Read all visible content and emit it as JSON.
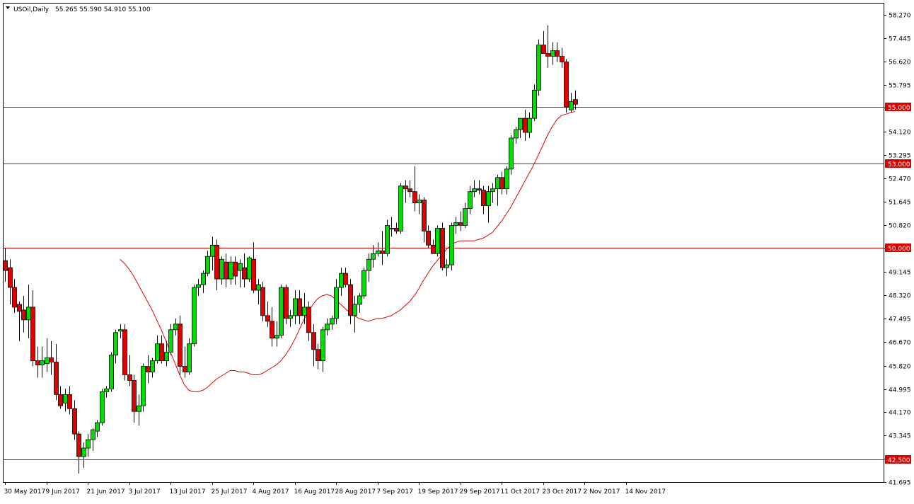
{
  "header": {
    "symbol": "USOil,Daily",
    "ohlc": "55.265 55.590 54.910 55.100"
  },
  "colors": {
    "bull": "#00dd00",
    "bear": "#dd0000",
    "wick": "#000000",
    "ma": "#e00000",
    "level_line": "#dd0000",
    "label_bg": "#dd0000",
    "label_text": "#ffffff",
    "frame": "#000000",
    "background": "#ffffff"
  },
  "chart_data": {
    "type": "candlestick",
    "title": "USOil,Daily",
    "ylim": [
      41.695,
      58.35
    ],
    "grid": false,
    "y_ticks": [
      "58.270",
      "57.445",
      "56.620",
      "55.795",
      "54.970",
      "54.120",
      "53.295",
      "52.470",
      "51.645",
      "50.820",
      "49.970",
      "49.145",
      "48.320",
      "47.495",
      "46.670",
      "45.820",
      "44.995",
      "44.170",
      "43.345",
      "42.520",
      "41.695"
    ],
    "x_labels": [
      "30 May 2017",
      "9 Jun 2017",
      "21 Jun 2017",
      "3 Jul 2017",
      "13 Jul 2017",
      "25 Jul 2017",
      "4 Aug 2017",
      "16 Aug 2017",
      "28 Aug 2017",
      "7 Sep 2017",
      "19 Sep 2017",
      "29 Sep 2017",
      "11 Oct 2017",
      "23 Oct 2017",
      "2 Nov 2017",
      "14 Nov 2017"
    ],
    "x_label_indices": [
      0,
      9,
      18,
      27,
      36,
      45,
      54,
      63,
      72,
      81,
      90,
      99,
      108,
      117,
      126,
      135
    ],
    "horizontal_levels": [
      {
        "value": 55.0,
        "label": "55.000"
      },
      {
        "value": 53.0,
        "label": "53.000"
      },
      {
        "value": 50.0,
        "label": "50.000"
      },
      {
        "value": 42.5,
        "label": "42.500"
      }
    ],
    "candles": [
      {
        "o": 49.55,
        "h": 50.0,
        "l": 48.8,
        "c": 49.2
      },
      {
        "o": 49.3,
        "h": 49.6,
        "l": 48.0,
        "c": 48.6
      },
      {
        "o": 48.6,
        "h": 48.9,
        "l": 47.7,
        "c": 47.9
      },
      {
        "o": 48.0,
        "h": 48.1,
        "l": 46.7,
        "c": 47.75
      },
      {
        "o": 47.8,
        "h": 48.3,
        "l": 47.0,
        "c": 47.45
      },
      {
        "o": 47.45,
        "h": 48.7,
        "l": 46.8,
        "c": 47.9
      },
      {
        "o": 47.9,
        "h": 48.5,
        "l": 45.8,
        "c": 46.0
      },
      {
        "o": 46.0,
        "h": 46.5,
        "l": 45.4,
        "c": 45.85
      },
      {
        "o": 45.85,
        "h": 46.5,
        "l": 45.4,
        "c": 46.0
      },
      {
        "o": 45.9,
        "h": 46.8,
        "l": 45.6,
        "c": 46.1
      },
      {
        "o": 46.1,
        "h": 46.7,
        "l": 45.5,
        "c": 45.95
      },
      {
        "o": 45.95,
        "h": 46.6,
        "l": 44.6,
        "c": 44.8
      },
      {
        "o": 44.8,
        "h": 45.1,
        "l": 44.3,
        "c": 44.4
      },
      {
        "o": 44.5,
        "h": 45.0,
        "l": 44.2,
        "c": 44.8
      },
      {
        "o": 44.8,
        "h": 45.1,
        "l": 44.1,
        "c": 44.3
      },
      {
        "o": 44.3,
        "h": 44.6,
        "l": 43.2,
        "c": 43.4
      },
      {
        "o": 43.4,
        "h": 43.5,
        "l": 42.0,
        "c": 42.6
      },
      {
        "o": 42.6,
        "h": 43.1,
        "l": 42.2,
        "c": 42.9
      },
      {
        "o": 42.9,
        "h": 43.4,
        "l": 42.6,
        "c": 43.2
      },
      {
        "o": 43.2,
        "h": 43.6,
        "l": 42.8,
        "c": 43.55
      },
      {
        "o": 43.5,
        "h": 43.9,
        "l": 43.3,
        "c": 43.8
      },
      {
        "o": 43.8,
        "h": 45.0,
        "l": 43.7,
        "c": 44.9
      },
      {
        "o": 44.9,
        "h": 45.1,
        "l": 44.7,
        "c": 45.0
      },
      {
        "o": 45.0,
        "h": 46.3,
        "l": 44.9,
        "c": 46.2
      },
      {
        "o": 46.2,
        "h": 47.1,
        "l": 45.9,
        "c": 47.0
      },
      {
        "o": 47.05,
        "h": 47.3,
        "l": 46.8,
        "c": 47.1
      },
      {
        "o": 47.1,
        "h": 47.3,
        "l": 45.3,
        "c": 45.5
      },
      {
        "o": 45.5,
        "h": 46.2,
        "l": 45.1,
        "c": 45.3
      },
      {
        "o": 45.3,
        "h": 45.5,
        "l": 43.8,
        "c": 44.2
      },
      {
        "o": 44.2,
        "h": 44.8,
        "l": 43.7,
        "c": 44.4
      },
      {
        "o": 44.4,
        "h": 45.9,
        "l": 44.2,
        "c": 45.8
      },
      {
        "o": 45.8,
        "h": 46.2,
        "l": 45.2,
        "c": 45.6
      },
      {
        "o": 45.6,
        "h": 46.1,
        "l": 45.4,
        "c": 46.0
      },
      {
        "o": 46.0,
        "h": 46.9,
        "l": 45.9,
        "c": 46.6
      },
      {
        "o": 46.6,
        "h": 46.9,
        "l": 45.9,
        "c": 46.0
      },
      {
        "o": 46.0,
        "h": 46.7,
        "l": 45.8,
        "c": 46.3
      },
      {
        "o": 46.3,
        "h": 47.3,
        "l": 46.2,
        "c": 47.1
      },
      {
        "o": 47.1,
        "h": 47.5,
        "l": 46.9,
        "c": 47.3
      },
      {
        "o": 47.3,
        "h": 47.6,
        "l": 45.5,
        "c": 45.8
      },
      {
        "o": 45.8,
        "h": 46.5,
        "l": 45.4,
        "c": 45.6
      },
      {
        "o": 45.6,
        "h": 46.8,
        "l": 45.5,
        "c": 46.6
      },
      {
        "o": 46.6,
        "h": 48.7,
        "l": 46.5,
        "c": 48.6
      },
      {
        "o": 48.6,
        "h": 48.9,
        "l": 48.3,
        "c": 48.7
      },
      {
        "o": 48.7,
        "h": 49.2,
        "l": 48.4,
        "c": 49.1
      },
      {
        "o": 49.1,
        "h": 49.9,
        "l": 49.0,
        "c": 49.7
      },
      {
        "o": 49.7,
        "h": 50.4,
        "l": 49.2,
        "c": 50.1
      },
      {
        "o": 50.1,
        "h": 50.3,
        "l": 48.5,
        "c": 48.9
      },
      {
        "o": 48.9,
        "h": 49.7,
        "l": 48.7,
        "c": 49.6
      },
      {
        "o": 49.5,
        "h": 49.8,
        "l": 48.6,
        "c": 48.9
      },
      {
        "o": 48.9,
        "h": 49.7,
        "l": 48.7,
        "c": 49.5
      },
      {
        "o": 49.5,
        "h": 49.7,
        "l": 48.7,
        "c": 49.0
      },
      {
        "o": 49.2,
        "h": 49.6,
        "l": 48.6,
        "c": 49.45
      },
      {
        "o": 49.3,
        "h": 49.8,
        "l": 48.6,
        "c": 48.9
      },
      {
        "o": 48.9,
        "h": 49.7,
        "l": 48.8,
        "c": 49.65
      },
      {
        "o": 49.6,
        "h": 50.2,
        "l": 48.4,
        "c": 48.5
      },
      {
        "o": 48.5,
        "h": 48.9,
        "l": 48.0,
        "c": 48.7
      },
      {
        "o": 48.6,
        "h": 48.8,
        "l": 47.4,
        "c": 47.6
      },
      {
        "o": 47.6,
        "h": 48.1,
        "l": 47.2,
        "c": 47.4
      },
      {
        "o": 47.4,
        "h": 47.9,
        "l": 46.5,
        "c": 46.8
      },
      {
        "o": 46.8,
        "h": 47.4,
        "l": 46.5,
        "c": 46.9
      },
      {
        "o": 46.9,
        "h": 48.7,
        "l": 46.8,
        "c": 48.6
      },
      {
        "o": 48.6,
        "h": 48.7,
        "l": 47.3,
        "c": 47.5
      },
      {
        "o": 47.5,
        "h": 47.8,
        "l": 47.2,
        "c": 47.6
      },
      {
        "o": 47.6,
        "h": 48.5,
        "l": 47.3,
        "c": 48.2
      },
      {
        "o": 48.2,
        "h": 48.5,
        "l": 47.3,
        "c": 47.6
      },
      {
        "o": 47.6,
        "h": 48.4,
        "l": 47.3,
        "c": 47.9
      },
      {
        "o": 47.9,
        "h": 48.1,
        "l": 46.7,
        "c": 47.0
      },
      {
        "o": 47.0,
        "h": 47.3,
        "l": 45.8,
        "c": 46.4
      },
      {
        "o": 46.4,
        "h": 46.6,
        "l": 45.7,
        "c": 46.0
      },
      {
        "o": 46.0,
        "h": 47.2,
        "l": 45.6,
        "c": 47.1
      },
      {
        "o": 47.1,
        "h": 47.5,
        "l": 46.9,
        "c": 47.3
      },
      {
        "o": 47.3,
        "h": 47.6,
        "l": 47.1,
        "c": 47.5
      },
      {
        "o": 47.5,
        "h": 48.9,
        "l": 47.3,
        "c": 48.6
      },
      {
        "o": 48.6,
        "h": 49.3,
        "l": 48.3,
        "c": 49.1
      },
      {
        "o": 49.1,
        "h": 49.3,
        "l": 48.6,
        "c": 48.7
      },
      {
        "o": 48.7,
        "h": 48.9,
        "l": 47.3,
        "c": 47.6
      },
      {
        "o": 47.6,
        "h": 48.3,
        "l": 47.0,
        "c": 48.0
      },
      {
        "o": 48.0,
        "h": 48.4,
        "l": 47.7,
        "c": 48.3
      },
      {
        "o": 48.3,
        "h": 49.3,
        "l": 48.2,
        "c": 49.2
      },
      {
        "o": 49.2,
        "h": 49.8,
        "l": 48.8,
        "c": 49.6
      },
      {
        "o": 49.6,
        "h": 50.1,
        "l": 49.3,
        "c": 49.8
      },
      {
        "o": 49.8,
        "h": 50.2,
        "l": 49.7,
        "c": 49.9
      },
      {
        "o": 49.9,
        "h": 50.6,
        "l": 49.4,
        "c": 49.8
      },
      {
        "o": 49.8,
        "h": 51.0,
        "l": 49.7,
        "c": 50.8
      },
      {
        "o": 50.7,
        "h": 51.1,
        "l": 50.4,
        "c": 50.7
      },
      {
        "o": 50.7,
        "h": 50.9,
        "l": 50.5,
        "c": 50.6
      },
      {
        "o": 50.6,
        "h": 52.3,
        "l": 50.5,
        "c": 52.2
      },
      {
        "o": 52.2,
        "h": 52.4,
        "l": 51.6,
        "c": 52.1
      },
      {
        "o": 52.1,
        "h": 52.4,
        "l": 51.8,
        "c": 52.0
      },
      {
        "o": 52.0,
        "h": 52.9,
        "l": 51.3,
        "c": 51.6
      },
      {
        "o": 51.6,
        "h": 51.9,
        "l": 51.2,
        "c": 51.7
      },
      {
        "o": 51.7,
        "h": 51.8,
        "l": 50.2,
        "c": 50.6
      },
      {
        "o": 50.6,
        "h": 50.8,
        "l": 50.0,
        "c": 50.1
      },
      {
        "o": 50.1,
        "h": 50.3,
        "l": 49.8,
        "c": 49.8
      },
      {
        "o": 49.8,
        "h": 50.8,
        "l": 49.7,
        "c": 50.7
      },
      {
        "o": 50.7,
        "h": 50.9,
        "l": 49.2,
        "c": 49.3
      },
      {
        "o": 49.3,
        "h": 49.6,
        "l": 49.0,
        "c": 49.4
      },
      {
        "o": 49.4,
        "h": 50.9,
        "l": 49.2,
        "c": 50.8
      },
      {
        "o": 50.8,
        "h": 51.1,
        "l": 50.5,
        "c": 50.9
      },
      {
        "o": 50.9,
        "h": 51.3,
        "l": 50.6,
        "c": 50.8
      },
      {
        "o": 50.8,
        "h": 51.6,
        "l": 50.7,
        "c": 51.4
      },
      {
        "o": 51.4,
        "h": 52.2,
        "l": 51.2,
        "c": 52.0
      },
      {
        "o": 52.0,
        "h": 52.4,
        "l": 51.8,
        "c": 52.1
      },
      {
        "o": 52.1,
        "h": 52.4,
        "l": 51.9,
        "c": 52.05
      },
      {
        "o": 52.05,
        "h": 52.2,
        "l": 51.2,
        "c": 51.5
      },
      {
        "o": 51.5,
        "h": 52.2,
        "l": 50.9,
        "c": 52.0
      },
      {
        "o": 52.0,
        "h": 52.3,
        "l": 51.6,
        "c": 52.1
      },
      {
        "o": 52.1,
        "h": 52.6,
        "l": 51.5,
        "c": 52.5
      },
      {
        "o": 52.5,
        "h": 52.7,
        "l": 51.9,
        "c": 52.1
      },
      {
        "o": 52.1,
        "h": 52.9,
        "l": 51.9,
        "c": 52.8
      },
      {
        "o": 52.8,
        "h": 54.0,
        "l": 52.6,
        "c": 53.9
      },
      {
        "o": 53.9,
        "h": 54.3,
        "l": 53.7,
        "c": 54.2
      },
      {
        "o": 54.2,
        "h": 54.6,
        "l": 53.9,
        "c": 54.6
      },
      {
        "o": 54.6,
        "h": 54.9,
        "l": 53.8,
        "c": 54.1
      },
      {
        "o": 54.1,
        "h": 54.8,
        "l": 53.9,
        "c": 54.6
      },
      {
        "o": 54.6,
        "h": 55.8,
        "l": 54.5,
        "c": 55.6
      },
      {
        "o": 55.6,
        "h": 57.4,
        "l": 55.4,
        "c": 57.2
      },
      {
        "o": 57.2,
        "h": 57.7,
        "l": 56.9,
        "c": 56.9
      },
      {
        "o": 56.9,
        "h": 57.9,
        "l": 56.4,
        "c": 56.8
      },
      {
        "o": 56.8,
        "h": 57.3,
        "l": 56.5,
        "c": 57.0
      },
      {
        "o": 57.0,
        "h": 57.3,
        "l": 56.6,
        "c": 56.8
      },
      {
        "o": 56.8,
        "h": 57.1,
        "l": 56.4,
        "c": 56.6
      },
      {
        "o": 56.6,
        "h": 56.7,
        "l": 54.8,
        "c": 55.0
      },
      {
        "o": 54.9,
        "h": 55.5,
        "l": 54.8,
        "c": 55.2
      },
      {
        "o": 55.265,
        "h": 55.59,
        "l": 54.91,
        "c": 55.1
      }
    ],
    "ma": [
      49.6,
      49.45,
      49.25,
      49.0,
      48.7,
      48.4,
      48.1,
      47.8,
      47.45,
      47.1,
      46.7,
      46.3,
      45.9,
      45.5,
      45.15,
      44.95,
      44.9,
      44.9,
      44.95,
      45.05,
      45.2,
      45.35,
      45.45,
      45.55,
      45.65,
      45.65,
      45.6,
      45.6,
      45.55,
      45.5,
      45.5,
      45.55,
      45.65,
      45.75,
      45.85,
      46.0,
      46.2,
      46.45,
      46.75,
      47.1,
      47.45,
      47.75,
      48.0,
      48.2,
      48.3,
      48.35,
      48.3,
      48.15,
      48.0,
      47.85,
      47.7,
      47.6,
      47.5,
      47.45,
      47.4,
      47.45,
      47.5,
      47.5,
      47.55,
      47.6,
      47.7,
      47.8,
      47.95,
      48.1,
      48.3,
      48.55,
      48.85,
      49.1,
      49.35,
      49.55,
      49.75,
      49.95,
      50.1,
      50.2,
      50.25,
      50.25,
      50.25,
      50.25,
      50.3,
      50.35,
      50.45,
      50.55,
      50.75,
      50.95,
      51.2,
      51.45,
      51.75,
      52.05,
      52.35,
      52.65,
      52.95,
      53.3,
      53.65,
      54.0,
      54.3,
      54.55,
      54.7,
      54.75,
      54.8,
      54.85
    ]
  }
}
